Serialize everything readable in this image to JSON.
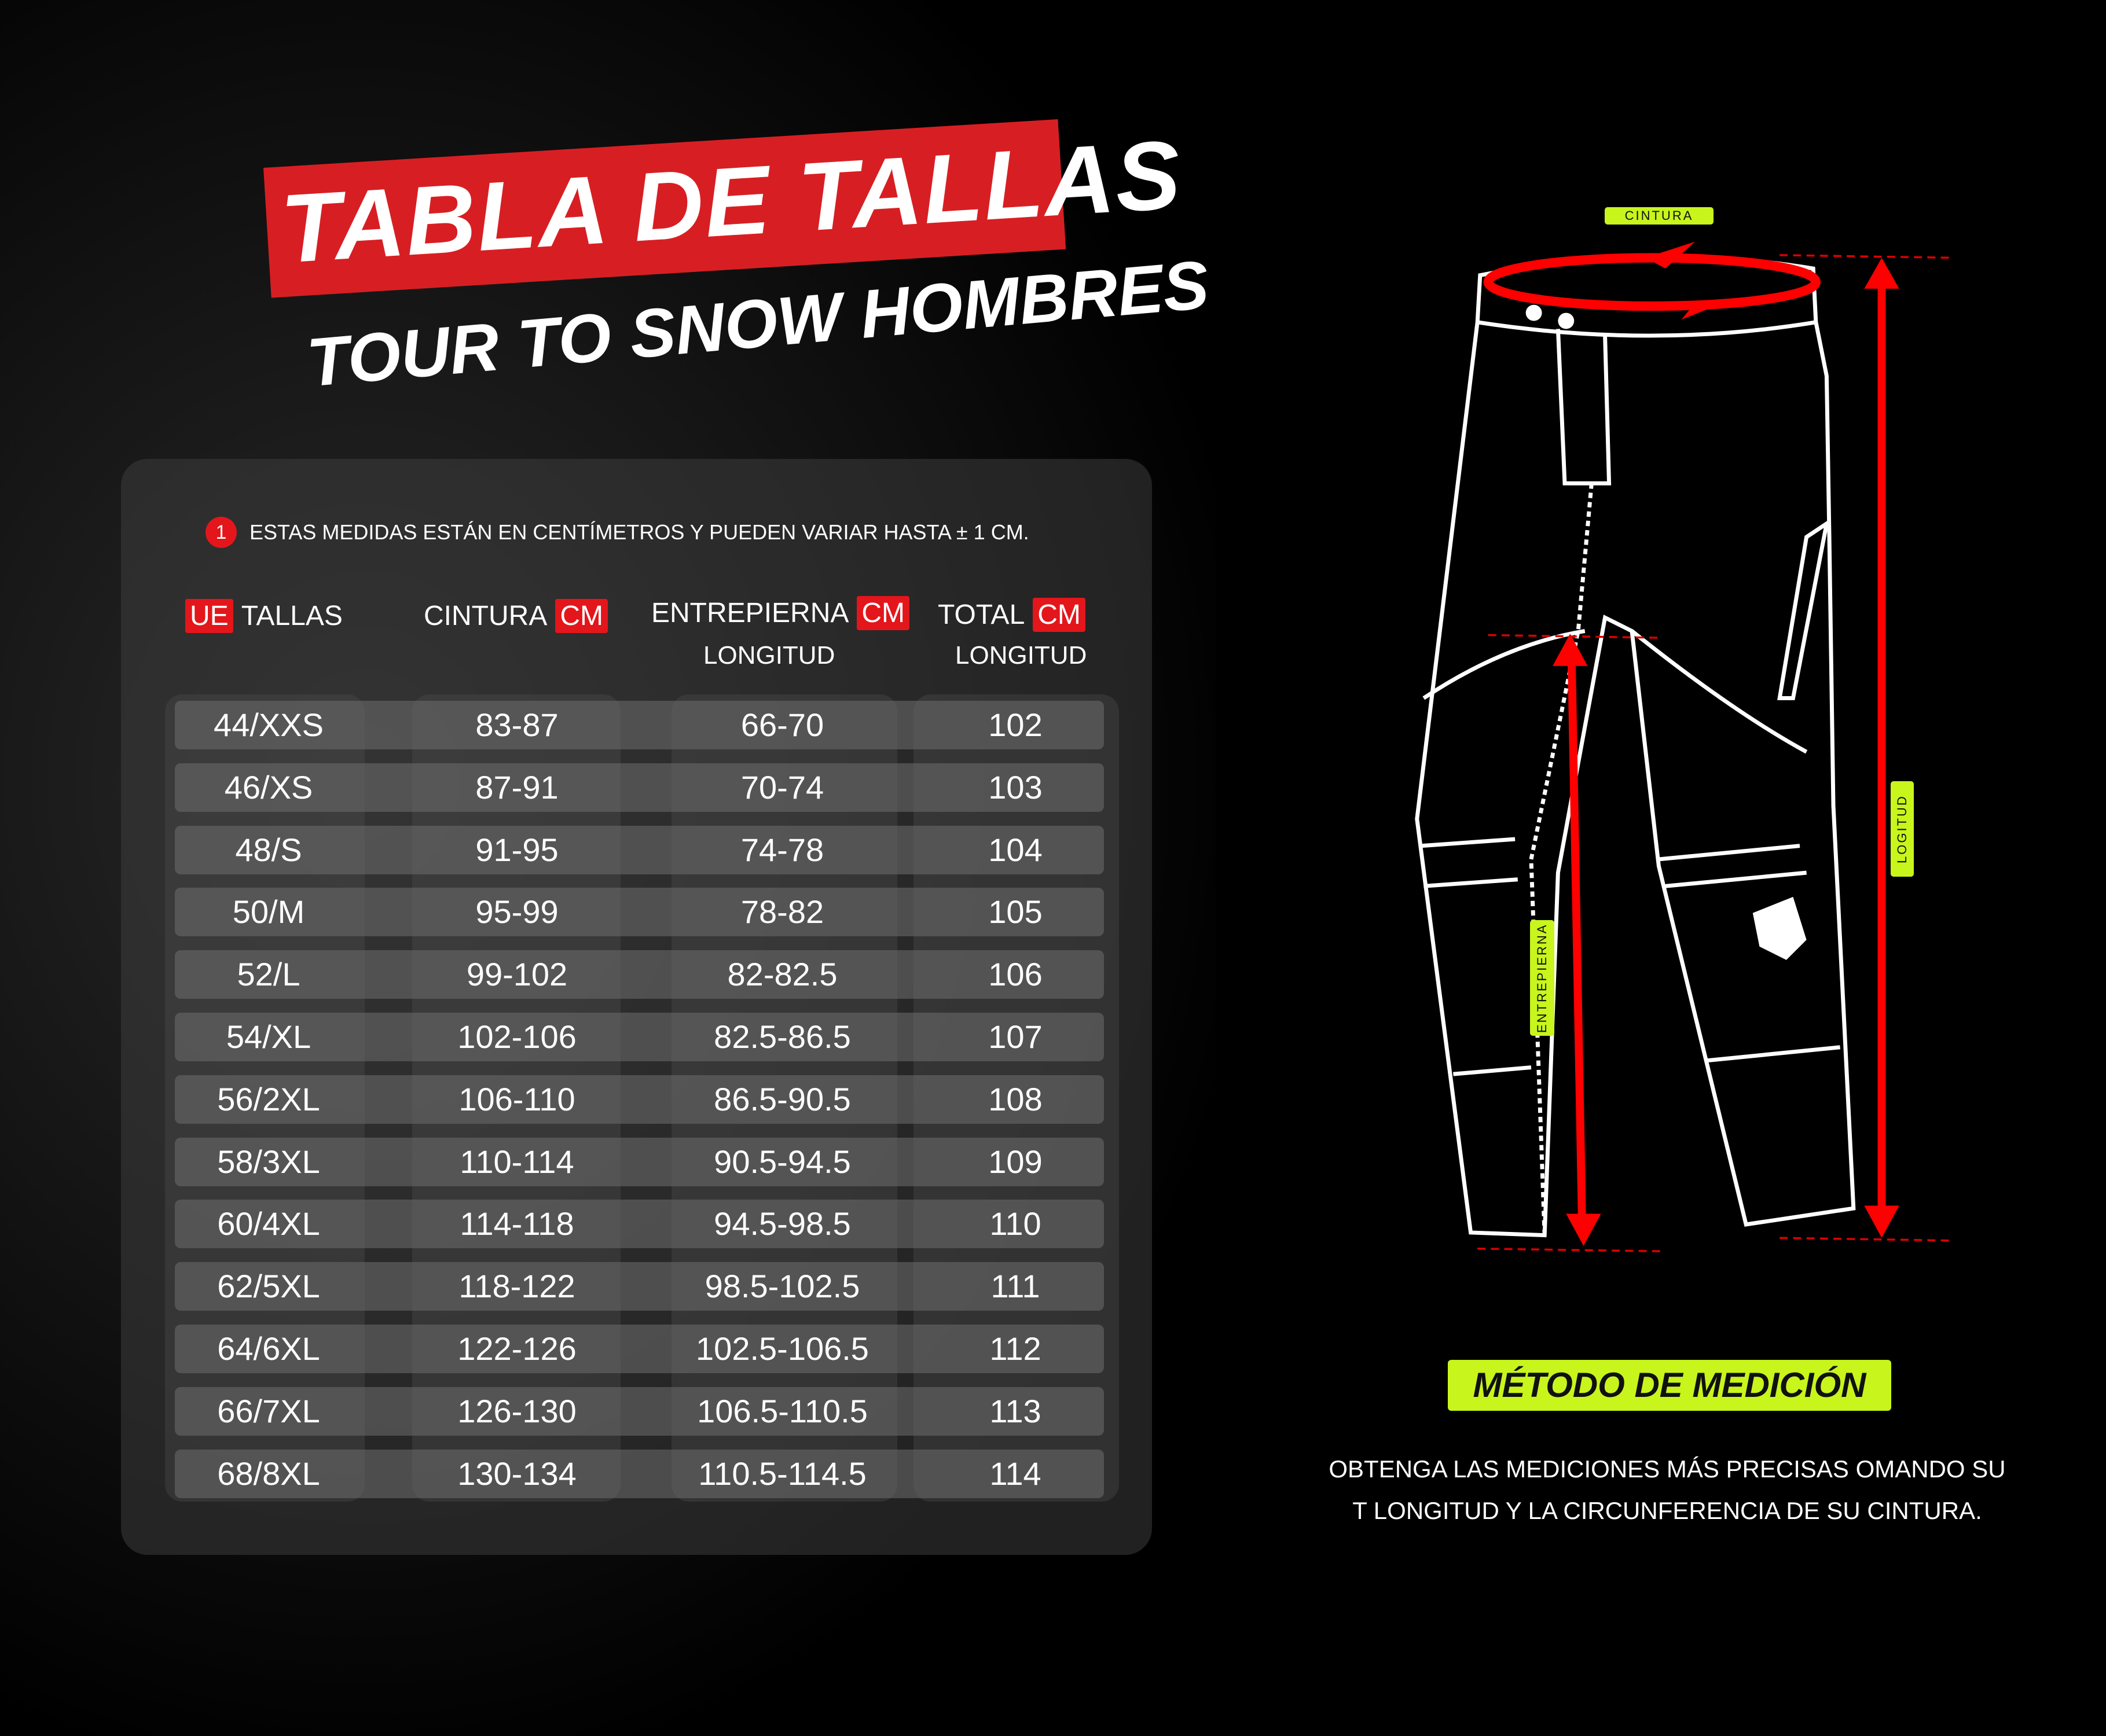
{
  "header": {
    "title": "TABLA DE TALLAS",
    "subtitle": "TOUR TO SNOW HOMBRES"
  },
  "note": {
    "number": "1",
    "text": "ESTAS MEDIDAS ESTÁN EN CENTÍMETROS Y PUEDEN VARIAR HASTA ± 1 CM."
  },
  "columns": [
    {
      "tag": "UE",
      "label": "TALLAS",
      "sub": ""
    },
    {
      "label": "CINTURA",
      "tag": "CM",
      "sub": ""
    },
    {
      "label": "ENTREPIERNA",
      "tag": "CM",
      "sub": "LONGITUD"
    },
    {
      "label": "TOTAL",
      "tag": "CM",
      "sub": "LONGITUD"
    }
  ],
  "rows": [
    [
      "44/XXS",
      "83-87",
      "66-70",
      "102"
    ],
    [
      "46/XS",
      "87-91",
      "70-74",
      "103"
    ],
    [
      "48/S",
      "91-95",
      "74-78",
      "104"
    ],
    [
      "50/M",
      "95-99",
      "78-82",
      "105"
    ],
    [
      "52/L",
      "99-102",
      "82-82.5",
      "106"
    ],
    [
      "54/XL",
      "102-106",
      "82.5-86.5",
      "107"
    ],
    [
      "56/2XL",
      "106-110",
      "86.5-90.5",
      "108"
    ],
    [
      "58/3XL",
      "110-114",
      "90.5-94.5",
      "109"
    ],
    [
      "60/4XL",
      "114-118",
      "94.5-98.5",
      "110"
    ],
    [
      "62/5XL",
      "118-122",
      "98.5-102.5",
      "111"
    ],
    [
      "64/6XL",
      "122-126",
      "102.5-106.5",
      "112"
    ],
    [
      "66/7XL",
      "126-130",
      "106.5-110.5",
      "113"
    ],
    [
      "68/8XL",
      "130-134",
      "110.5-114.5",
      "114"
    ]
  ],
  "diagram": {
    "waist_label": "CINTURA",
    "inseam_label": "ENTREPIERNA",
    "length_label": "LOGITUD"
  },
  "method": {
    "title": "MÉTODO DE MEDICIÓN",
    "line1": "OBTENGA LAS MEDICIONES MÁS PRECISAS OMANDO SU",
    "line2": "T LONGITUD Y LA CIRCUNFERENCIA DE SU CINTURA."
  },
  "colors": {
    "accent_red": "#e3161b",
    "accent_lime": "#c8f51c",
    "background": "#000000"
  }
}
